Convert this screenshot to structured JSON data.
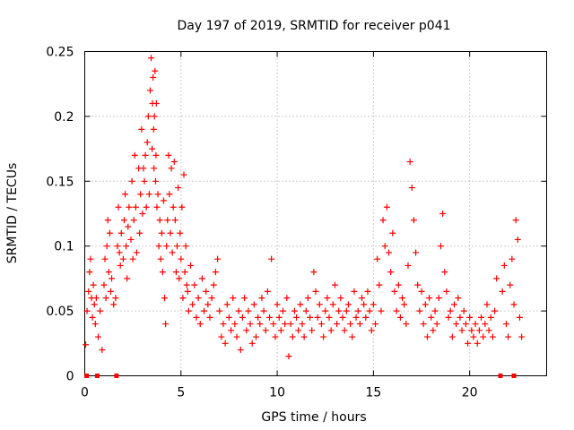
{
  "chart_data": {
    "type": "scatter",
    "title": "Day 197 of 2019, SRMTID for receiver p041",
    "xlabel": "GPS time / hours",
    "ylabel": "SRMTID / TECUs",
    "xlim": [
      0,
      24
    ],
    "ylim": [
      0,
      0.25
    ],
    "xticks": [
      0,
      5,
      10,
      15,
      20
    ],
    "xtick_labels": [
      "0",
      "5",
      "10",
      "15",
      "20"
    ],
    "yticks": [
      0,
      0.05,
      0.1,
      0.15,
      0.2,
      0.25
    ],
    "ytick_labels": [
      "0",
      "0.05",
      "0.1",
      "0.15",
      "0.2",
      "0.25"
    ],
    "grid": true,
    "marker": "+",
    "color": "#ff0000",
    "series": [
      {
        "name": "SRMTID",
        "x": [
          0.05,
          0.12,
          0.2,
          0.25,
          0.3,
          0.35,
          0.4,
          0.45,
          0.5,
          0.55,
          0.6,
          0.7,
          0.8,
          0.9,
          1.0,
          1.05,
          1.1,
          1.15,
          1.2,
          1.25,
          1.3,
          1.35,
          1.4,
          1.5,
          1.6,
          1.7,
          1.75,
          1.8,
          1.85,
          1.9,
          2.0,
          2.05,
          2.1,
          2.15,
          2.2,
          2.25,
          2.3,
          2.4,
          2.45,
          2.5,
          2.55,
          2.6,
          2.65,
          2.7,
          2.8,
          2.85,
          2.9,
          2.95,
          3.0,
          3.05,
          3.1,
          3.15,
          3.2,
          3.25,
          3.3,
          3.35,
          3.4,
          3.45,
          3.5,
          3.52,
          3.55,
          3.58,
          3.6,
          3.62,
          3.65,
          3.68,
          3.7,
          3.72,
          3.75,
          3.8,
          3.85,
          3.9,
          3.95,
          4.0,
          4.05,
          4.1,
          4.15,
          4.2,
          4.25,
          4.3,
          4.35,
          4.4,
          4.45,
          4.5,
          4.55,
          4.6,
          4.65,
          4.7,
          4.75,
          4.8,
          4.85,
          4.9,
          4.95,
          5.0,
          5.05,
          5.1,
          5.15,
          5.2,
          5.25,
          5.3,
          5.35,
          5.4,
          5.5,
          5.6,
          5.7,
          5.8,
          5.9,
          6.0,
          6.1,
          6.2,
          6.3,
          6.4,
          6.5,
          6.6,
          6.7,
          6.8,
          6.9,
          7.0,
          7.1,
          7.2,
          7.3,
          7.4,
          7.5,
          7.6,
          7.7,
          7.8,
          7.9,
          8.0,
          8.1,
          8.2,
          8.3,
          8.4,
          8.5,
          8.6,
          8.7,
          8.8,
          8.9,
          9.0,
          9.1,
          9.2,
          9.3,
          9.4,
          9.5,
          9.6,
          9.7,
          9.8,
          9.9,
          10.0,
          10.1,
          10.2,
          10.3,
          10.4,
          10.5,
          10.6,
          10.7,
          10.8,
          10.9,
          11.0,
          11.1,
          11.2,
          11.3,
          11.4,
          11.5,
          11.6,
          11.7,
          11.8,
          11.9,
          12.0,
          12.1,
          12.2,
          12.3,
          12.4,
          12.5,
          12.6,
          12.7,
          12.8,
          12.9,
          13.0,
          13.1,
          13.2,
          13.3,
          13.4,
          13.5,
          13.6,
          13.7,
          13.8,
          13.9,
          14.0,
          14.1,
          14.2,
          14.3,
          14.4,
          14.5,
          14.6,
          14.7,
          14.8,
          14.9,
          15.0,
          15.1,
          15.2,
          15.3,
          15.4,
          15.5,
          15.6,
          15.7,
          15.8,
          15.9,
          16.0,
          16.1,
          16.2,
          16.3,
          16.4,
          16.5,
          16.6,
          16.7,
          16.8,
          16.9,
          17.0,
          17.1,
          17.2,
          17.3,
          17.4,
          17.5,
          17.6,
          17.7,
          17.8,
          17.9,
          18.0,
          18.1,
          18.2,
          18.3,
          18.4,
          18.5,
          18.6,
          18.7,
          18.8,
          18.9,
          19.0,
          19.1,
          19.2,
          19.3,
          19.4,
          19.5,
          19.6,
          19.7,
          19.8,
          19.9,
          20.0,
          20.1,
          20.2,
          20.3,
          20.4,
          20.5,
          20.6,
          20.7,
          20.8,
          20.9,
          21.0,
          21.1,
          21.2,
          21.3,
          21.4,
          21.7,
          21.8,
          21.9,
          22.0,
          22.1,
          22.2,
          22.3,
          22.4,
          22.5,
          22.6,
          22.7
        ],
        "y": [
          0.024,
          0.05,
          0.065,
          0.08,
          0.09,
          0.06,
          0.045,
          0.07,
          0.055,
          0.04,
          0.06,
          0.03,
          0.05,
          0.02,
          0.07,
          0.09,
          0.06,
          0.1,
          0.12,
          0.08,
          0.11,
          0.065,
          0.075,
          0.055,
          0.06,
          0.1,
          0.13,
          0.095,
          0.085,
          0.11,
          0.09,
          0.12,
          0.14,
          0.1,
          0.075,
          0.115,
          0.13,
          0.105,
          0.15,
          0.09,
          0.12,
          0.17,
          0.13,
          0.095,
          0.16,
          0.11,
          0.14,
          0.19,
          0.125,
          0.16,
          0.15,
          0.17,
          0.13,
          0.18,
          0.2,
          0.14,
          0.22,
          0.245,
          0.175,
          0.21,
          0.23,
          0.19,
          0.16,
          0.2,
          0.235,
          0.15,
          0.17,
          0.21,
          0.13,
          0.14,
          0.1,
          0.12,
          0.09,
          0.11,
          0.08,
          0.135,
          0.06,
          0.04,
          0.1,
          0.12,
          0.17,
          0.14,
          0.11,
          0.16,
          0.095,
          0.13,
          0.165,
          0.12,
          0.08,
          0.1,
          0.145,
          0.075,
          0.11,
          0.09,
          0.13,
          0.06,
          0.155,
          0.08,
          0.1,
          0.07,
          0.065,
          0.05,
          0.085,
          0.055,
          0.07,
          0.045,
          0.06,
          0.04,
          0.075,
          0.05,
          0.065,
          0.055,
          0.045,
          0.06,
          0.07,
          0.08,
          0.09,
          0.05,
          0.03,
          0.04,
          0.025,
          0.055,
          0.045,
          0.035,
          0.06,
          0.04,
          0.03,
          0.05,
          0.02,
          0.045,
          0.06,
          0.035,
          0.05,
          0.04,
          0.025,
          0.055,
          0.03,
          0.045,
          0.04,
          0.06,
          0.05,
          0.035,
          0.065,
          0.045,
          0.09,
          0.04,
          0.03,
          0.055,
          0.045,
          0.035,
          0.05,
          0.04,
          0.06,
          0.015,
          0.04,
          0.03,
          0.05,
          0.045,
          0.035,
          0.055,
          0.04,
          0.03,
          0.05,
          0.06,
          0.045,
          0.035,
          0.08,
          0.065,
          0.045,
          0.055,
          0.04,
          0.03,
          0.05,
          0.06,
          0.045,
          0.035,
          0.055,
          0.07,
          0.04,
          0.05,
          0.06,
          0.045,
          0.035,
          0.05,
          0.055,
          0.04,
          0.03,
          0.065,
          0.045,
          0.05,
          0.04,
          0.06,
          0.055,
          0.045,
          0.065,
          0.05,
          0.035,
          0.055,
          0.04,
          0.09,
          0.07,
          0.05,
          0.12,
          0.1,
          0.13,
          0.095,
          0.08,
          0.11,
          0.065,
          0.05,
          0.07,
          0.045,
          0.06,
          0.055,
          0.04,
          0.085,
          0.165,
          0.145,
          0.12,
          0.095,
          0.07,
          0.05,
          0.065,
          0.04,
          0.055,
          0.03,
          0.06,
          0.045,
          0.035,
          0.05,
          0.04,
          0.06,
          0.1,
          0.125,
          0.08,
          0.065,
          0.045,
          0.05,
          0.03,
          0.055,
          0.04,
          0.06,
          0.045,
          0.035,
          0.05,
          0.04,
          0.025,
          0.045,
          0.035,
          0.03,
          0.04,
          0.025,
          0.035,
          0.045,
          0.03,
          0.04,
          0.055,
          0.035,
          0.045,
          0.03,
          0.05,
          0.075,
          0.065,
          0.085,
          0.04,
          0.03,
          0.07,
          0.09,
          0.055,
          0.12,
          0.105,
          0.045,
          0.03
        ]
      }
    ],
    "zero_markers_x": [
      0.1,
      0.65,
      1.65,
      21.6,
      22.3
    ]
  }
}
